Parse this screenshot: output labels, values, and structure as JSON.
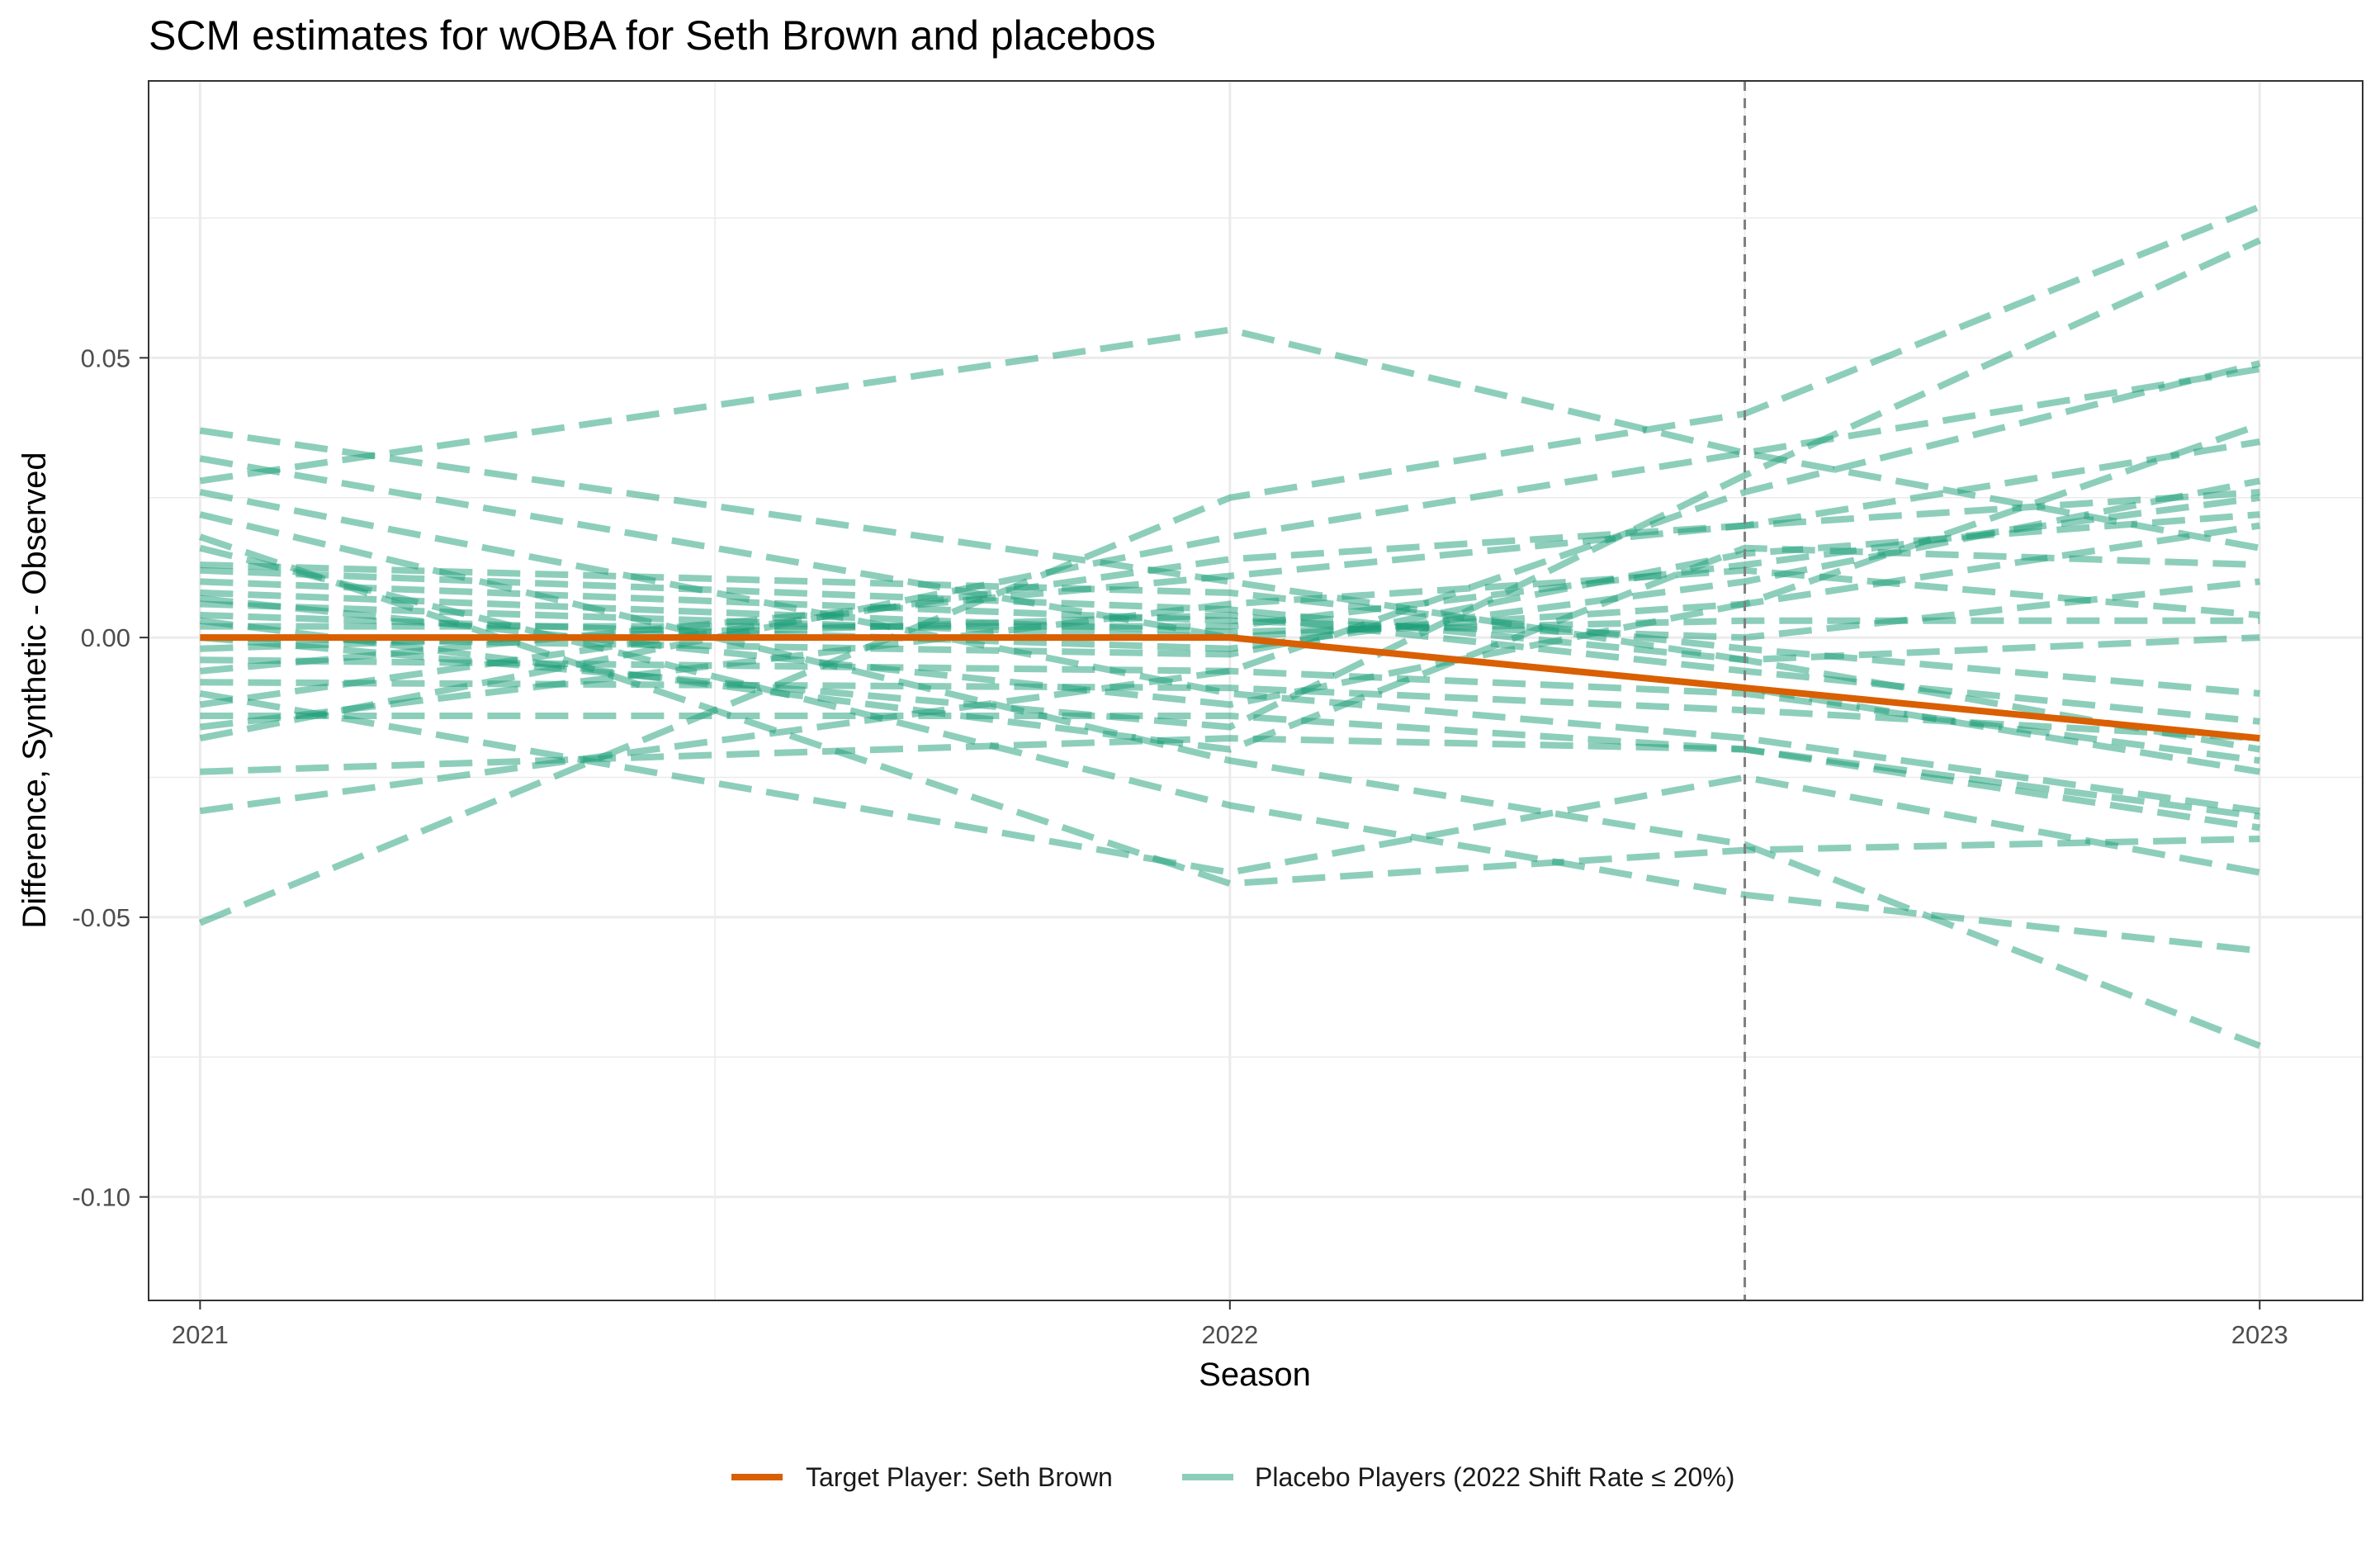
{
  "chart_data": {
    "type": "line",
    "title": "SCM estimates for wOBA for Seth Brown and placebos",
    "xlabel": "Season",
    "ylabel": "Difference, Synthetic - Observed",
    "x_ticks": [
      {
        "value": 2021,
        "label": "2021"
      },
      {
        "value": 2022,
        "label": "2022"
      },
      {
        "value": 2023,
        "label": "2023"
      }
    ],
    "y_ticks": [
      {
        "value": -0.1,
        "label": "-0.10"
      },
      {
        "value": -0.05,
        "label": "-0.05"
      },
      {
        "value": 0.0,
        "label": "0.00"
      },
      {
        "value": 0.05,
        "label": "0.05"
      }
    ],
    "xlim": [
      2020.95,
      2023.1
    ],
    "ylim": [
      -0.1185,
      0.0995
    ],
    "grid": true,
    "vline": {
      "x": 2022.5,
      "style": "dashed",
      "color": "#7f7f7f"
    },
    "colors": {
      "target": "#D95F02",
      "placebo": "#1B9E77",
      "grid": "#ebebeb",
      "border": "#333333"
    },
    "legend": {
      "position": "bottom",
      "entries": [
        {
          "label": "Target Player: Seth Brown",
          "color": "#D95F02",
          "style": "solid"
        },
        {
          "label": "Placebo Players (2022 Shift Rate ≤ 20%)",
          "color": "#1B9E77",
          "style": "dashed"
        }
      ]
    },
    "target_series": {
      "x": [
        2021,
        2022,
        2022.5,
        2023
      ],
      "y": [
        0.0,
        0.0,
        -0.009,
        -0.018
      ]
    },
    "placebo_series": {
      "x": [
        2021,
        2022,
        2022.5,
        2023
      ],
      "y": [
        [
          0.037,
          0.01,
          -0.004,
          0.0
        ],
        [
          0.032,
          0.0,
          -0.009,
          -0.024
        ],
        [
          0.026,
          -0.01,
          -0.018,
          -0.031
        ],
        [
          0.022,
          -0.022,
          -0.037,
          -0.073
        ],
        [
          0.016,
          -0.03,
          -0.046,
          -0.056
        ],
        [
          0.013,
          0.008,
          -0.002,
          -0.01
        ],
        [
          0.012,
          0.005,
          -0.004,
          -0.02
        ],
        [
          0.01,
          0.003,
          0.0,
          0.01
        ],
        [
          0.008,
          0.001,
          0.003,
          0.003
        ],
        [
          0.006,
          0.0,
          0.006,
          0.02
        ],
        [
          0.004,
          -0.002,
          0.01,
          0.028
        ],
        [
          0.002,
          0.002,
          0.013,
          0.025
        ],
        [
          0.0,
          -0.003,
          0.015,
          0.022
        ],
        [
          -0.002,
          0.004,
          -0.006,
          -0.015
        ],
        [
          -0.004,
          -0.006,
          -0.01,
          -0.022
        ],
        [
          -0.008,
          -0.009,
          -0.013,
          -0.018
        ],
        [
          -0.012,
          0.014,
          0.02,
          0.035
        ],
        [
          -0.014,
          -0.014,
          -0.02,
          -0.034
        ],
        [
          -0.018,
          0.018,
          0.033,
          0.048
        ],
        [
          -0.024,
          -0.018,
          -0.02,
          -0.032
        ],
        [
          -0.031,
          -0.006,
          0.026,
          0.049
        ],
        [
          -0.051,
          0.025,
          0.04,
          0.077
        ],
        [
          0.028,
          0.055,
          0.033,
          0.016
        ],
        [
          0.018,
          -0.044,
          -0.038,
          -0.036
        ],
        [
          -0.01,
          -0.042,
          -0.025,
          -0.042
        ],
        [
          0.0,
          -0.016,
          0.029,
          0.071
        ],
        [
          0.007,
          -0.012,
          0.006,
          0.038
        ],
        [
          -0.006,
          0.011,
          0.02,
          0.026
        ],
        [
          0.003,
          -0.02,
          0.016,
          0.013
        ],
        [
          -0.016,
          0.006,
          0.012,
          0.004
        ]
      ]
    }
  }
}
